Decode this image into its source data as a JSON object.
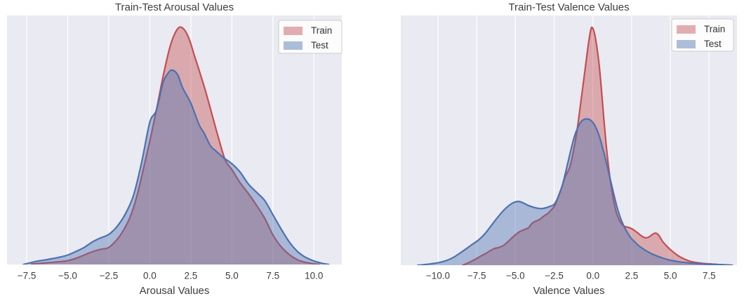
{
  "figure": {
    "background": "#ffffff",
    "axes_background": "#eaeaf2",
    "grid_color": "#ffffff",
    "text_color": "#3d3d3d",
    "legend_box_fill": "#ffffff",
    "legend_box_border": "#cccccc",
    "train_color": "#c44e52",
    "test_color": "#4c72b0",
    "fill_opacity": 0.42
  },
  "chart_data": [
    {
      "type": "area",
      "kind": "kde-density",
      "title": "Train-Test Arousal Values",
      "xlabel": "Arousal Values",
      "ylabel": "",
      "grid": true,
      "legend_position": "upper right",
      "xlim": [
        -8.7,
        11.7
      ],
      "ylim": [
        0,
        1.05
      ],
      "y_units": "relative density (Train peak = 1.0)",
      "xtick_values": [
        -7.5,
        -5.0,
        -2.5,
        0.0,
        2.5,
        5.0,
        7.5,
        10.0
      ],
      "xtick_labels": [
        "−7.5",
        "−5.0",
        "−2.5",
        "0.0",
        "2.5",
        "5.0",
        "7.5",
        "10.0"
      ],
      "series": [
        {
          "name": "Train",
          "color": "#c44e52",
          "points": [
            [
              -7.2,
              0.002
            ],
            [
              -6.5,
              0.006
            ],
            [
              -6.0,
              0.009
            ],
            [
              -5.5,
              0.012
            ],
            [
              -5.0,
              0.016
            ],
            [
              -4.5,
              0.026
            ],
            [
              -4.0,
              0.04
            ],
            [
              -3.5,
              0.054
            ],
            [
              -3.0,
              0.064
            ],
            [
              -2.5,
              0.072
            ],
            [
              -2.0,
              0.105
            ],
            [
              -1.6,
              0.145
            ],
            [
              -1.2,
              0.2
            ],
            [
              -0.8,
              0.285
            ],
            [
              -0.4,
              0.4
            ],
            [
              0.0,
              0.52
            ],
            [
              0.4,
              0.65
            ],
            [
              0.8,
              0.79
            ],
            [
              1.2,
              0.91
            ],
            [
              1.5,
              0.97
            ],
            [
              1.8,
              1.0
            ],
            [
              2.1,
              0.99
            ],
            [
              2.4,
              0.95
            ],
            [
              2.7,
              0.885
            ],
            [
              3.0,
              0.82
            ],
            [
              3.4,
              0.73
            ],
            [
              3.8,
              0.63
            ],
            [
              4.2,
              0.53
            ],
            [
              4.6,
              0.44
            ],
            [
              5.0,
              0.4
            ],
            [
              5.5,
              0.345
            ],
            [
              6.0,
              0.3
            ],
            [
              6.5,
              0.25
            ],
            [
              7.0,
              0.195
            ],
            [
              7.5,
              0.125
            ],
            [
              8.0,
              0.075
            ],
            [
              8.5,
              0.042
            ],
            [
              9.0,
              0.02
            ],
            [
              9.5,
              0.009
            ],
            [
              10.0,
              0.003
            ],
            [
              10.35,
              0.0
            ]
          ]
        },
        {
          "name": "Test",
          "color": "#4c72b0",
          "points": [
            [
              -7.7,
              0.0
            ],
            [
              -7.0,
              0.012
            ],
            [
              -6.5,
              0.018
            ],
            [
              -6.0,
              0.024
            ],
            [
              -5.5,
              0.031
            ],
            [
              -5.0,
              0.04
            ],
            [
              -4.5,
              0.055
            ],
            [
              -4.0,
              0.072
            ],
            [
              -3.5,
              0.095
            ],
            [
              -3.0,
              0.112
            ],
            [
              -2.5,
              0.127
            ],
            [
              -2.0,
              0.16
            ],
            [
              -1.5,
              0.212
            ],
            [
              -1.0,
              0.29
            ],
            [
              -0.5,
              0.43
            ],
            [
              0.0,
              0.6
            ],
            [
              0.4,
              0.65
            ],
            [
              0.8,
              0.765
            ],
            [
              1.1,
              0.805
            ],
            [
              1.35,
              0.82
            ],
            [
              1.7,
              0.8
            ],
            [
              2.0,
              0.745
            ],
            [
              2.5,
              0.68
            ],
            [
              3.0,
              0.59
            ],
            [
              3.3,
              0.555
            ],
            [
              3.7,
              0.5
            ],
            [
              4.0,
              0.48
            ],
            [
              4.5,
              0.45
            ],
            [
              5.0,
              0.425
            ],
            [
              5.5,
              0.39
            ],
            [
              6.0,
              0.34
            ],
            [
              6.5,
              0.305
            ],
            [
              7.0,
              0.27
            ],
            [
              7.5,
              0.21
            ],
            [
              8.0,
              0.15
            ],
            [
              8.5,
              0.095
            ],
            [
              9.0,
              0.055
            ],
            [
              9.5,
              0.03
            ],
            [
              10.0,
              0.015
            ],
            [
              10.5,
              0.005
            ],
            [
              10.9,
              0.0
            ]
          ]
        }
      ]
    },
    {
      "type": "area",
      "kind": "kde-density",
      "title": "Train-Test Valence Values",
      "xlabel": "Valence Values",
      "ylabel": "",
      "grid": true,
      "legend_position": "upper right",
      "xlim": [
        -12.4,
        9.3
      ],
      "ylim": [
        0,
        1.05
      ],
      "y_units": "relative density (Train peak = 1.0)",
      "xtick_values": [
        -10.0,
        -7.5,
        -5.0,
        -2.5,
        0.0,
        2.5,
        5.0,
        7.5
      ],
      "xtick_labels": [
        "−10.0",
        "−7.5",
        "−5.0",
        "−2.5",
        "0.0",
        "2.5",
        "5.0",
        "7.5"
      ],
      "series": [
        {
          "name": "Train",
          "color": "#c44e52",
          "points": [
            [
              -8.4,
              0.0
            ],
            [
              -8.1,
              0.008
            ],
            [
              -7.8,
              0.018
            ],
            [
              -7.5,
              0.028
            ],
            [
              -7.2,
              0.04
            ],
            [
              -6.9,
              0.05
            ],
            [
              -6.6,
              0.062
            ],
            [
              -6.35,
              0.07
            ],
            [
              -6.1,
              0.074
            ],
            [
              -5.85,
              0.08
            ],
            [
              -5.6,
              0.092
            ],
            [
              -5.3,
              0.11
            ],
            [
              -5.0,
              0.128
            ],
            [
              -4.7,
              0.142
            ],
            [
              -4.4,
              0.15
            ],
            [
              -4.15,
              0.158
            ],
            [
              -3.95,
              0.175
            ],
            [
              -3.7,
              0.185
            ],
            [
              -3.45,
              0.192
            ],
            [
              -3.2,
              0.205
            ],
            [
              -2.9,
              0.218
            ],
            [
              -2.65,
              0.235
            ],
            [
              -2.45,
              0.252
            ],
            [
              -2.2,
              0.295
            ],
            [
              -2.0,
              0.33
            ],
            [
              -1.8,
              0.37
            ],
            [
              -1.65,
              0.39
            ],
            [
              -1.5,
              0.41
            ],
            [
              -1.35,
              0.45
            ],
            [
              -1.2,
              0.5
            ],
            [
              -1.05,
              0.555
            ],
            [
              -0.9,
              0.625
            ],
            [
              -0.75,
              0.7
            ],
            [
              -0.6,
              0.775
            ],
            [
              -0.45,
              0.85
            ],
            [
              -0.3,
              0.925
            ],
            [
              -0.15,
              0.985
            ],
            [
              -0.05,
              1.0
            ],
            [
              0.1,
              0.975
            ],
            [
              0.25,
              0.92
            ],
            [
              0.4,
              0.845
            ],
            [
              0.55,
              0.74
            ],
            [
              0.7,
              0.62
            ],
            [
              0.85,
              0.51
            ],
            [
              1.0,
              0.42
            ],
            [
              1.15,
              0.345
            ],
            [
              1.3,
              0.285
            ],
            [
              1.5,
              0.225
            ],
            [
              1.7,
              0.19
            ],
            [
              1.9,
              0.17
            ],
            [
              2.1,
              0.162
            ],
            [
              2.35,
              0.158
            ],
            [
              2.6,
              0.15
            ],
            [
              2.85,
              0.138
            ],
            [
              3.1,
              0.125
            ],
            [
              3.35,
              0.116
            ],
            [
              3.6,
              0.118
            ],
            [
              3.85,
              0.13
            ],
            [
              4.05,
              0.135
            ],
            [
              4.25,
              0.126
            ],
            [
              4.5,
              0.1
            ],
            [
              4.8,
              0.078
            ],
            [
              5.1,
              0.06
            ],
            [
              5.5,
              0.04
            ],
            [
              5.9,
              0.026
            ],
            [
              6.3,
              0.016
            ],
            [
              6.7,
              0.011
            ],
            [
              7.2,
              0.007
            ],
            [
              7.7,
              0.005
            ],
            [
              8.3,
              0.002
            ],
            [
              8.9,
              0.0
            ]
          ]
        },
        {
          "name": "Test",
          "color": "#4c72b0",
          "points": [
            [
              -11.3,
              0.0
            ],
            [
              -10.8,
              0.003
            ],
            [
              -10.3,
              0.007
            ],
            [
              -9.8,
              0.013
            ],
            [
              -9.4,
              0.021
            ],
            [
              -9.0,
              0.033
            ],
            [
              -8.6,
              0.05
            ],
            [
              -8.2,
              0.068
            ],
            [
              -7.8,
              0.087
            ],
            [
              -7.4,
              0.105
            ],
            [
              -7.0,
              0.13
            ],
            [
              -6.6,
              0.163
            ],
            [
              -6.2,
              0.197
            ],
            [
              -5.8,
              0.228
            ],
            [
              -5.4,
              0.252
            ],
            [
              -5.1,
              0.264
            ],
            [
              -4.8,
              0.268
            ],
            [
              -4.5,
              0.262
            ],
            [
              -4.2,
              0.252
            ],
            [
              -3.9,
              0.245
            ],
            [
              -3.6,
              0.24
            ],
            [
              -3.3,
              0.238
            ],
            [
              -3.0,
              0.242
            ],
            [
              -2.75,
              0.248
            ],
            [
              -2.5,
              0.256
            ],
            [
              -2.25,
              0.285
            ],
            [
              -2.0,
              0.33
            ],
            [
              -1.8,
              0.38
            ],
            [
              -1.6,
              0.435
            ],
            [
              -1.4,
              0.49
            ],
            [
              -1.2,
              0.54
            ],
            [
              -1.0,
              0.575
            ],
            [
              -0.8,
              0.6
            ],
            [
              -0.6,
              0.612
            ],
            [
              -0.4,
              0.615
            ],
            [
              -0.2,
              0.612
            ],
            [
              0.0,
              0.6
            ],
            [
              0.2,
              0.578
            ],
            [
              0.4,
              0.545
            ],
            [
              0.6,
              0.5
            ],
            [
              0.8,
              0.45
            ],
            [
              1.0,
              0.395
            ],
            [
              1.2,
              0.34
            ],
            [
              1.4,
              0.285
            ],
            [
              1.6,
              0.235
            ],
            [
              1.8,
              0.195
            ],
            [
              2.0,
              0.165
            ],
            [
              2.2,
              0.14
            ],
            [
              2.45,
              0.115
            ],
            [
              2.7,
              0.098
            ],
            [
              3.0,
              0.08
            ],
            [
              3.4,
              0.062
            ],
            [
              3.8,
              0.048
            ],
            [
              4.2,
              0.037
            ],
            [
              4.6,
              0.028
            ],
            [
              5.0,
              0.021
            ],
            [
              5.5,
              0.015
            ],
            [
              6.0,
              0.011
            ],
            [
              6.5,
              0.008
            ],
            [
              7.0,
              0.006
            ],
            [
              7.5,
              0.004
            ],
            [
              8.0,
              0.003
            ],
            [
              8.5,
              0.002
            ],
            [
              9.0,
              0.0
            ]
          ]
        }
      ]
    }
  ]
}
